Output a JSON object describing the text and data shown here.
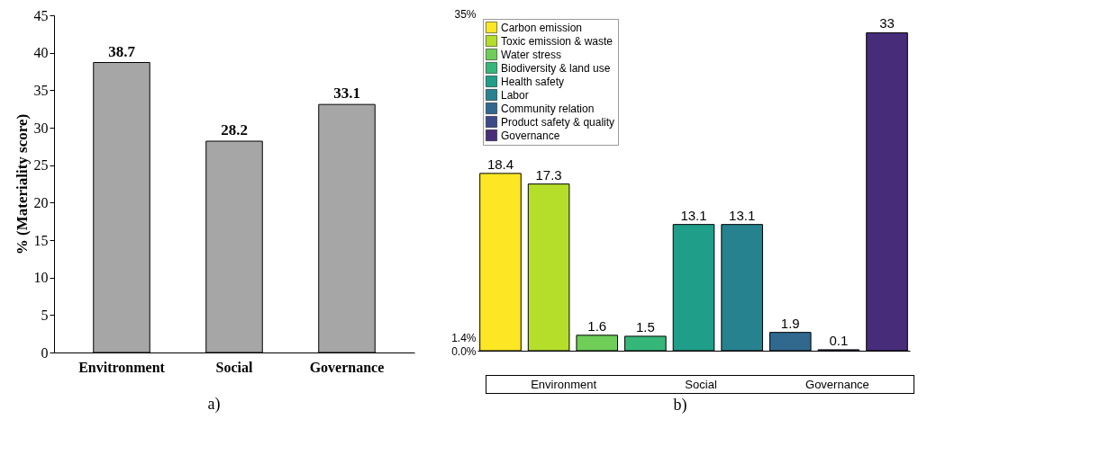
{
  "chart_data": [
    {
      "type": "bar",
      "categories": [
        "Envitronment",
        "Social",
        "Governance"
      ],
      "values": [
        38.7,
        28.2,
        33.1
      ],
      "color": "#a6a6a6",
      "ylabel": "% (Materiality score)",
      "ylim": [
        0,
        45
      ],
      "yticks": [
        0,
        5,
        10,
        15,
        20,
        25,
        30,
        35,
        40,
        45
      ],
      "data_labels": true,
      "annotations": [
        "a)"
      ]
    },
    {
      "type": "bar",
      "categories": [
        null,
        null,
        null,
        null,
        null,
        null,
        null,
        null,
        null
      ],
      "series": [
        {
          "name": "Carbon emission",
          "color": "#fde725",
          "values": [
            18.4,
            null,
            null,
            null,
            null,
            null,
            null,
            null,
            null
          ]
        },
        {
          "name": "Toxic emission & waste",
          "color": "#b5de2b",
          "values": [
            null,
            17.3,
            null,
            null,
            null,
            null,
            null,
            null,
            null
          ]
        },
        {
          "name": "Water stress",
          "color": "#6ece58",
          "values": [
            null,
            null,
            1.6,
            null,
            null,
            null,
            null,
            null,
            null
          ]
        },
        {
          "name": "Biodiversity & land use",
          "color": "#35b779",
          "values": [
            null,
            null,
            null,
            1.5,
            null,
            null,
            null,
            null,
            null
          ]
        },
        {
          "name": "Health safety",
          "color": "#1f9e89",
          "values": [
            null,
            null,
            null,
            null,
            13.1,
            null,
            null,
            null,
            null
          ]
        },
        {
          "name": "Labor",
          "color": "#26828e",
          "values": [
            null,
            null,
            null,
            null,
            null,
            13.1,
            null,
            null,
            null
          ]
        },
        {
          "name": "Community relation",
          "color": "#31688e",
          "values": [
            null,
            null,
            null,
            null,
            null,
            null,
            1.9,
            null,
            null
          ]
        },
        {
          "name": "Product safety & quality",
          "color": "#3e4989",
          "values": [
            null,
            null,
            null,
            null,
            null,
            null,
            null,
            0.1,
            null
          ]
        },
        {
          "name": "Governance",
          "color": "#472c7a",
          "values": [
            null,
            null,
            null,
            null,
            null,
            null,
            null,
            null,
            33
          ]
        }
      ],
      "ylim": [
        0,
        35
      ],
      "yticks": [
        {
          "value": 0,
          "label": "0.0%"
        },
        {
          "value": 1.4,
          "label": "1.4%"
        },
        {
          "value": 35,
          "label": "35%"
        }
      ],
      "tick_labels": "y",
      "legend": "top left",
      "data_labels": true,
      "annotations": [
        "Environment",
        "Social",
        "Governance",
        "b)"
      ]
    }
  ]
}
